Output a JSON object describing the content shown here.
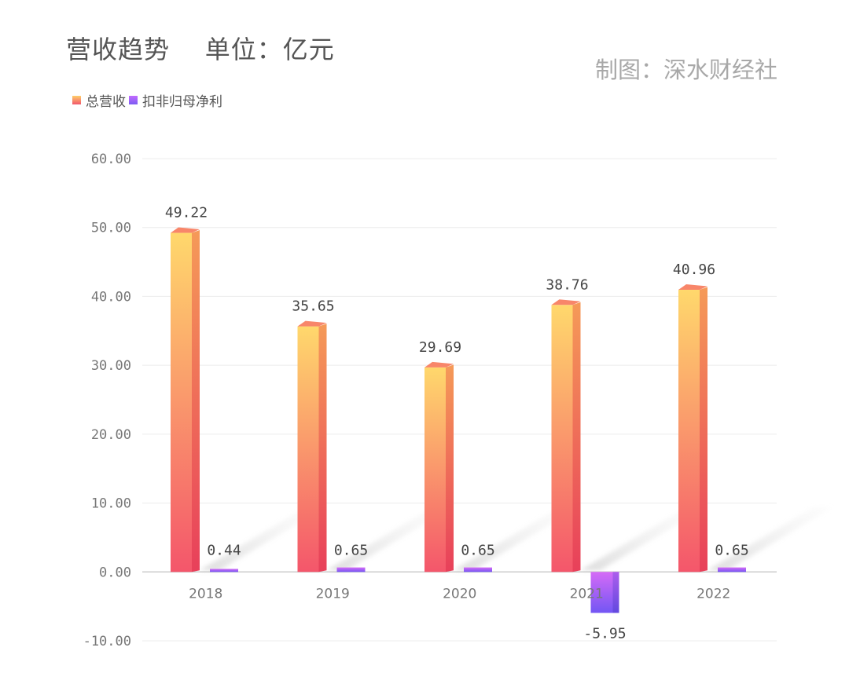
{
  "title": "营收趋势    单位：亿元",
  "credit": "制图：深水财经社",
  "colors": {
    "revenue_top": "#ffd66e",
    "revenue_bottom": "#f4566b",
    "net_top": "#d36cf6",
    "net_bottom": "#7558f4",
    "grid": "#ececec",
    "axis": "#cccccc"
  },
  "chart_data": {
    "type": "bar",
    "title": "营收趋势    单位：亿元",
    "categories": [
      "2018",
      "2019",
      "2020",
      "2021",
      "2022"
    ],
    "series": [
      {
        "name": "总营收",
        "values": [
          49.22,
          35.65,
          29.69,
          38.76,
          40.96
        ],
        "labels": [
          "49.22",
          "35.65",
          "29.69",
          "38.76",
          "40.96"
        ]
      },
      {
        "name": "扣非归母净利",
        "values": [
          0.44,
          0.65,
          0.65,
          -5.95,
          0.65
        ],
        "labels": [
          "0.44",
          "0.65",
          "0.65",
          "-5.95",
          "0.65"
        ]
      }
    ],
    "ylim": [
      -10,
      60
    ],
    "yticks": [
      60,
      50,
      40,
      30,
      20,
      10,
      0,
      -10
    ],
    "ytick_labels": [
      "60.00",
      "50.00",
      "40.00",
      "30.00",
      "20.00",
      "10.00",
      "0.00",
      "-10.00"
    ],
    "grid": true,
    "legend": "top-left",
    "xlabel": "",
    "ylabel": ""
  }
}
